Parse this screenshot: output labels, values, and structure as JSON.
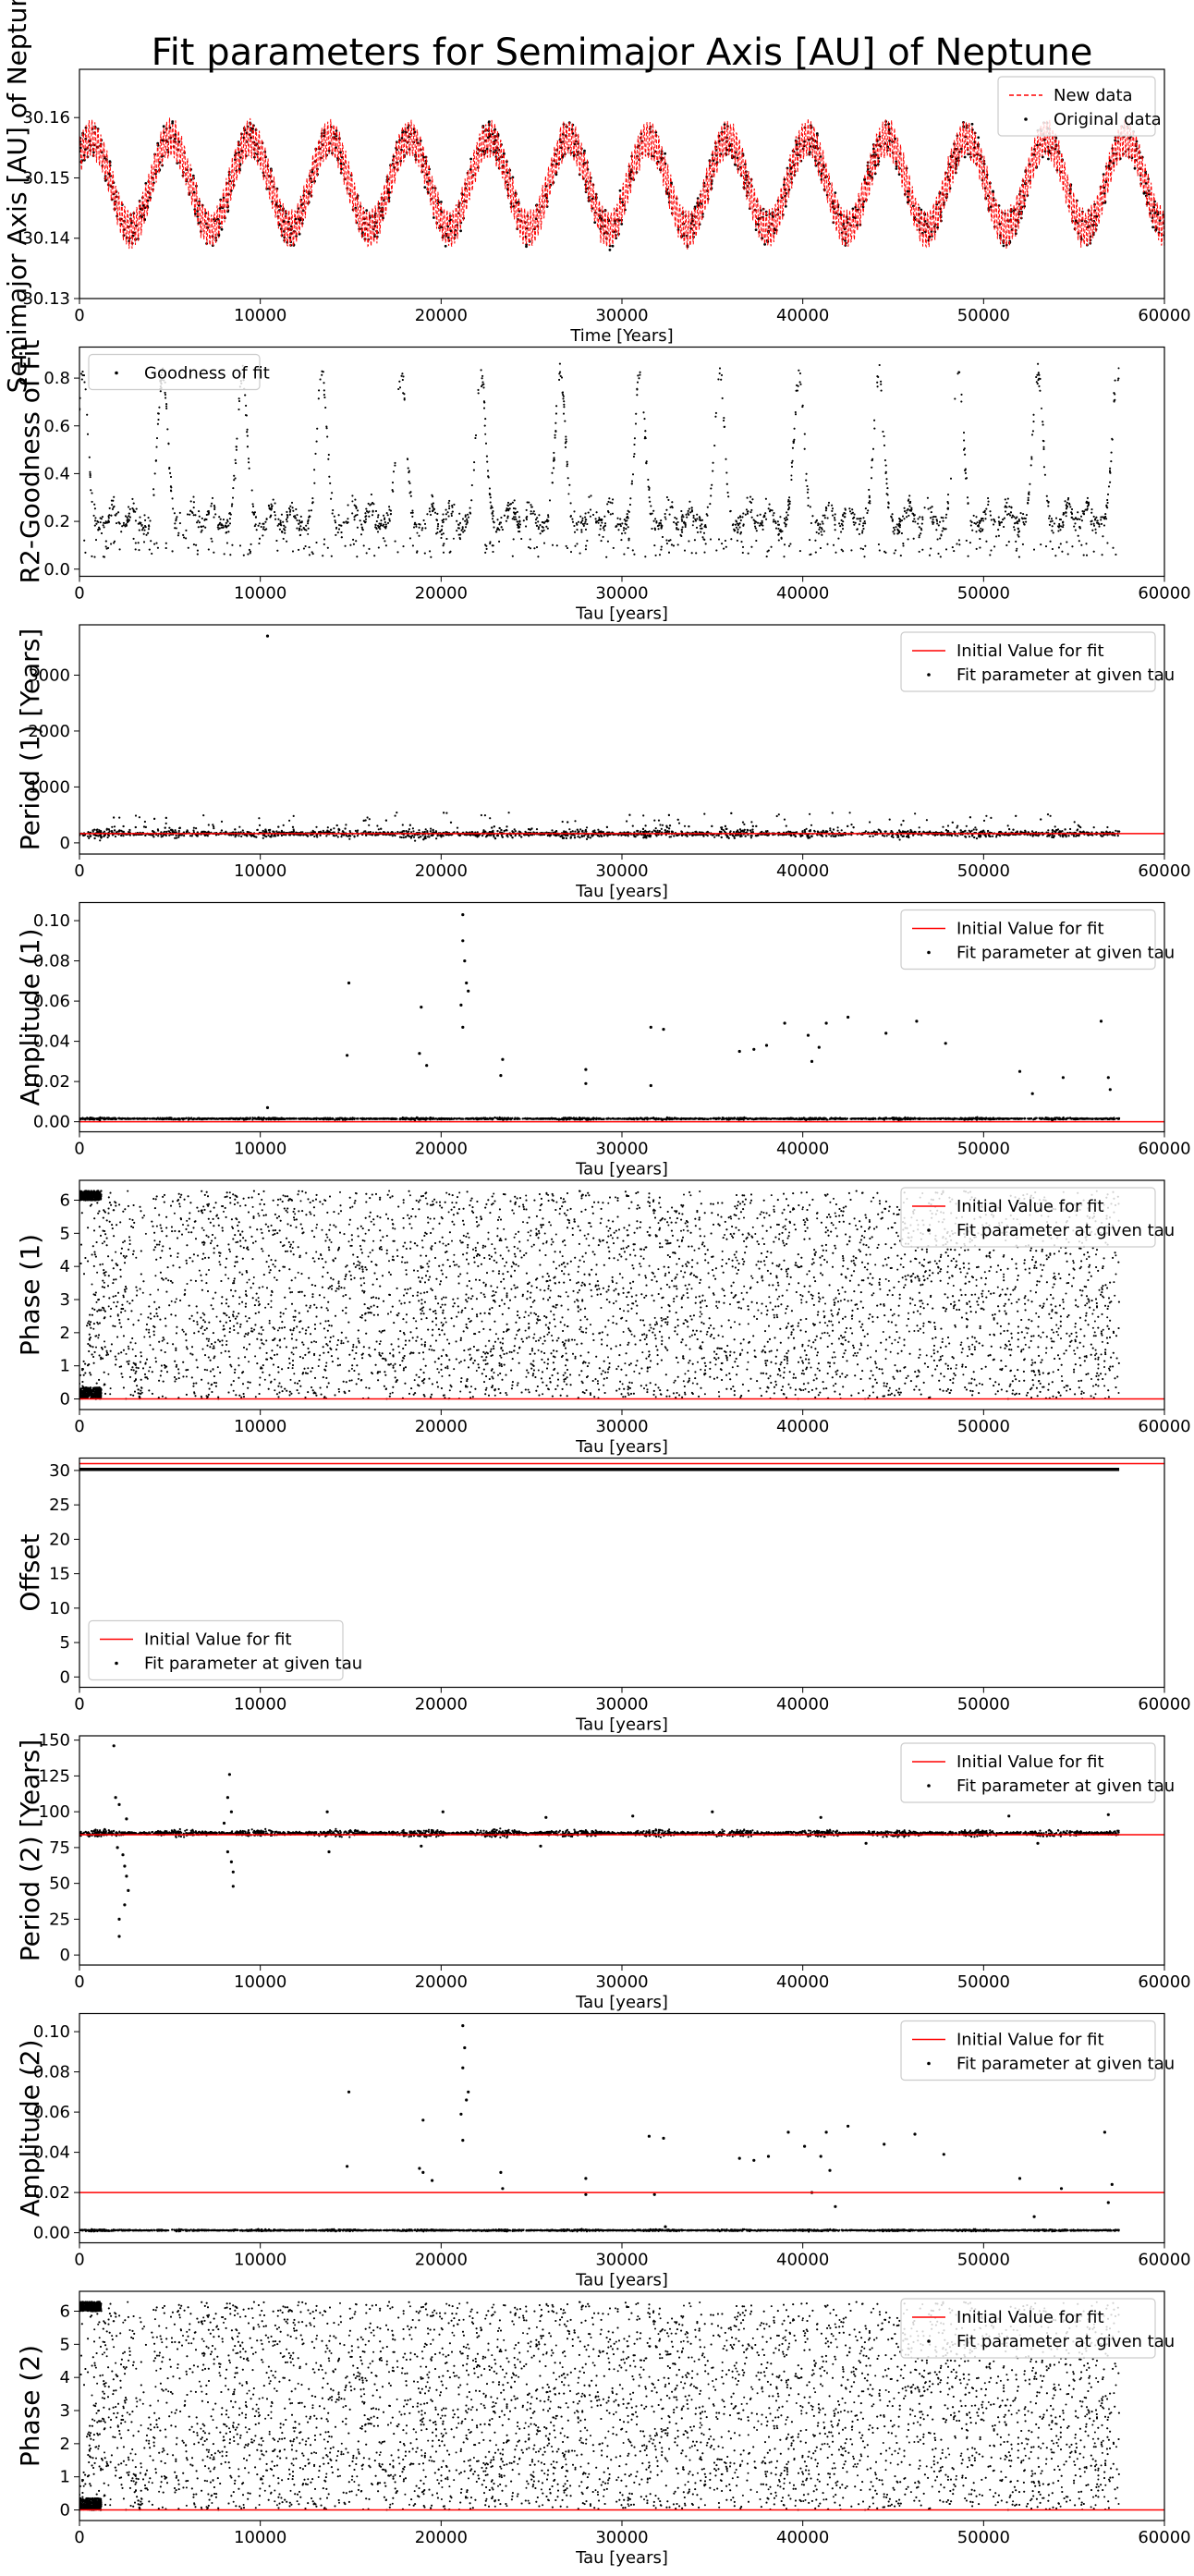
{
  "figure": {
    "title": "Fit parameters for Semimajor Axis [AU] of Neptune"
  },
  "chart_data": [
    {
      "id": "semimajor",
      "type": "line",
      "xlabel": "Time [Years]",
      "ylabel": "Semimajor Axis [AU] of Neptune",
      "xlim": [
        0,
        60000
      ],
      "ylim": [
        30.13,
        30.168
      ],
      "xticks": [
        0,
        10000,
        20000,
        30000,
        40000,
        50000,
        60000
      ],
      "yticks": [
        30.13,
        30.14,
        30.15,
        30.16
      ],
      "ytick_labels": [
        "30.13",
        "30.14",
        "30.15",
        "30.16"
      ],
      "legend_position": "top-right",
      "series": [
        {
          "name": "New data",
          "style": "dashed-line",
          "color": "#ff0000",
          "mean": 30.149,
          "slow_amplitude": 0.0075,
          "slow_period": 4400,
          "fast_amplitude": 0.003,
          "x_range": [
            0,
            60000
          ]
        },
        {
          "name": "Original data",
          "style": "points",
          "color": "#000000",
          "mean": 30.149,
          "slow_amplitude": 0.0075,
          "slow_period": 4400,
          "fast_amplitude": 0.0025,
          "x_range": [
            0,
            60000
          ]
        }
      ]
    },
    {
      "id": "r2",
      "type": "scatter",
      "xlabel": "Tau [years]",
      "ylabel": "R2-Goodness of Fit",
      "xlim": [
        0,
        60000
      ],
      "ylim": [
        -0.03,
        0.93
      ],
      "xticks": [
        0,
        10000,
        20000,
        30000,
        40000,
        50000,
        60000
      ],
      "yticks": [
        0.0,
        0.2,
        0.4,
        0.6,
        0.8
      ],
      "ytick_labels": [
        "0.0",
        "0.2",
        "0.4",
        "0.6",
        "0.8"
      ],
      "legend_position": "top-left",
      "series": [
        {
          "name": "Goodness of fit",
          "style": "points",
          "color": "#000000",
          "period": 4400,
          "base": 0.18,
          "peak": 0.82,
          "x_range": [
            0,
            57500
          ]
        }
      ]
    },
    {
      "id": "period1",
      "type": "scatter",
      "xlabel": "Tau [years]",
      "ylabel": "Period (1) [Years]",
      "xlim": [
        0,
        60000
      ],
      "ylim": [
        -200,
        3900
      ],
      "xticks": [
        0,
        10000,
        20000,
        30000,
        40000,
        50000,
        60000
      ],
      "yticks": [
        0,
        1000,
        2000,
        3000
      ],
      "ytick_labels": [
        "0",
        "1000",
        "2000",
        "3000"
      ],
      "legend_position": "top-right",
      "initial_value": 164.8,
      "series": [
        {
          "name": "Initial Value for fit",
          "style": "line",
          "color": "#ff0000"
        },
        {
          "name": "Fit parameter at given tau",
          "style": "points",
          "color": "#000000",
          "center": 164.8,
          "spread": 90,
          "outlier_max": 550,
          "x_range": [
            0,
            57500
          ]
        }
      ],
      "notable_points": [
        [
          10400,
          3700
        ]
      ]
    },
    {
      "id": "amplitude1",
      "type": "scatter",
      "xlabel": "Tau [years]",
      "ylabel": "Amplitude (1)",
      "xlim": [
        0,
        60000
      ],
      "ylim": [
        -0.005,
        0.109
      ],
      "xticks": [
        0,
        10000,
        20000,
        30000,
        40000,
        50000,
        60000
      ],
      "yticks": [
        0.0,
        0.02,
        0.04,
        0.06,
        0.08,
        0.1
      ],
      "ytick_labels": [
        "0.00",
        "0.02",
        "0.04",
        "0.06",
        "0.08",
        "0.10"
      ],
      "legend_position": "top-right",
      "initial_value": 0.0,
      "series": [
        {
          "name": "Initial Value for fit",
          "style": "line",
          "color": "#ff0000"
        },
        {
          "name": "Fit parameter at given tau",
          "style": "points",
          "color": "#000000",
          "center": 0.0015,
          "spread": 0.0006,
          "x_range": [
            0,
            57500
          ]
        }
      ],
      "notable_points": [
        [
          10400,
          0.007
        ],
        [
          14900,
          0.069
        ],
        [
          14800,
          0.033
        ],
        [
          18900,
          0.057
        ],
        [
          18800,
          0.034
        ],
        [
          19200,
          0.028
        ],
        [
          21200,
          0.103
        ],
        [
          21200,
          0.09
        ],
        [
          21300,
          0.08
        ],
        [
          21400,
          0.069
        ],
        [
          21500,
          0.065
        ],
        [
          21100,
          0.058
        ],
        [
          21200,
          0.047
        ],
        [
          23400,
          0.031
        ],
        [
          23300,
          0.023
        ],
        [
          28000,
          0.026
        ],
        [
          28000,
          0.019
        ],
        [
          31600,
          0.047
        ],
        [
          32300,
          0.046
        ],
        [
          31600,
          0.018
        ],
        [
          36500,
          0.035
        ],
        [
          37300,
          0.036
        ],
        [
          38000,
          0.038
        ],
        [
          39000,
          0.049
        ],
        [
          40300,
          0.043
        ],
        [
          40500,
          0.03
        ],
        [
          40900,
          0.037
        ],
        [
          41300,
          0.049
        ],
        [
          42500,
          0.052
        ],
        [
          44600,
          0.044
        ],
        [
          46300,
          0.05
        ],
        [
          47900,
          0.039
        ],
        [
          52000,
          0.025
        ],
        [
          52700,
          0.014
        ],
        [
          54400,
          0.022
        ],
        [
          56500,
          0.05
        ],
        [
          56900,
          0.022
        ],
        [
          57000,
          0.016
        ]
      ]
    },
    {
      "id": "phase1",
      "type": "scatter",
      "xlabel": "Tau [years]",
      "ylabel": "Phase (1)",
      "xlim": [
        0,
        60000
      ],
      "ylim": [
        -0.32,
        6.6
      ],
      "xticks": [
        0,
        10000,
        20000,
        30000,
        40000,
        50000,
        60000
      ],
      "yticks": [
        0,
        1,
        2,
        3,
        4,
        5,
        6
      ],
      "ytick_labels": [
        "0",
        "1",
        "2",
        "3",
        "4",
        "5",
        "6"
      ],
      "legend_position": "top-right",
      "initial_value": 0.0,
      "series": [
        {
          "name": "Initial Value for fit",
          "style": "line",
          "color": "#ff0000"
        },
        {
          "name": "Fit parameter at given tau",
          "style": "points",
          "color": "#000000",
          "y_range": [
            0,
            6.28
          ],
          "x_range": [
            0,
            57500
          ]
        }
      ]
    },
    {
      "id": "offset",
      "type": "scatter",
      "xlabel": "Tau [years]",
      "ylabel": "Offset",
      "xlim": [
        0,
        60000
      ],
      "ylim": [
        -1.5,
        31.8
      ],
      "xticks": [
        0,
        10000,
        20000,
        30000,
        40000,
        50000,
        60000
      ],
      "yticks": [
        0,
        5,
        10,
        15,
        20,
        25,
        30
      ],
      "ytick_labels": [
        "0",
        "5",
        "10",
        "15",
        "20",
        "25",
        "30"
      ],
      "legend_position": "bottom-left",
      "initial_value": 31.0,
      "series": [
        {
          "name": "Initial Value for fit",
          "style": "line",
          "color": "#ff0000"
        },
        {
          "name": "Fit parameter at given tau",
          "style": "points",
          "color": "#000000",
          "center": 30.15,
          "spread": 0.0,
          "x_range": [
            0,
            57500
          ]
        }
      ]
    },
    {
      "id": "period2",
      "type": "scatter",
      "xlabel": "Tau [years]",
      "ylabel": "Period (2) [Years]",
      "xlim": [
        0,
        60000
      ],
      "ylim": [
        -7,
        153
      ],
      "xticks": [
        0,
        10000,
        20000,
        30000,
        40000,
        50000,
        60000
      ],
      "yticks": [
        0,
        25,
        50,
        75,
        100,
        125,
        150
      ],
      "ytick_labels": [
        "0",
        "25",
        "50",
        "75",
        "100",
        "125",
        "150"
      ],
      "legend_position": "top-right",
      "initial_value": 84.0,
      "series": [
        {
          "name": "Initial Value for fit",
          "style": "line",
          "color": "#ff0000"
        },
        {
          "name": "Fit parameter at given tau",
          "style": "points",
          "color": "#000000",
          "center": 85.0,
          "spread": 2.5,
          "x_range": [
            0,
            57500
          ]
        }
      ],
      "notable_points": [
        [
          1900,
          146
        ],
        [
          2000,
          110
        ],
        [
          2200,
          105
        ],
        [
          2100,
          75
        ],
        [
          2400,
          70
        ],
        [
          2500,
          62
        ],
        [
          2600,
          55
        ],
        [
          2700,
          45
        ],
        [
          2500,
          35
        ],
        [
          2200,
          25
        ],
        [
          2200,
          13
        ],
        [
          2600,
          95
        ],
        [
          8300,
          126
        ],
        [
          8200,
          110
        ],
        [
          8400,
          100
        ],
        [
          8000,
          92
        ],
        [
          8200,
          72
        ],
        [
          8400,
          65
        ],
        [
          8500,
          58
        ],
        [
          8500,
          48
        ],
        [
          13700,
          100
        ],
        [
          13800,
          72
        ],
        [
          18900,
          76
        ],
        [
          20100,
          100
        ],
        [
          25800,
          96
        ],
        [
          25500,
          76
        ],
        [
          30600,
          97
        ],
        [
          35000,
          100
        ],
        [
          41000,
          96
        ],
        [
          43500,
          78
        ],
        [
          51400,
          97
        ],
        [
          53000,
          78
        ],
        [
          56900,
          98
        ]
      ]
    },
    {
      "id": "amplitude2",
      "type": "scatter",
      "xlabel": "Tau [years]",
      "ylabel": "Amplitude (2)",
      "xlim": [
        0,
        60000
      ],
      "ylim": [
        -0.005,
        0.109
      ],
      "xticks": [
        0,
        10000,
        20000,
        30000,
        40000,
        50000,
        60000
      ],
      "yticks": [
        0.0,
        0.02,
        0.04,
        0.06,
        0.08,
        0.1
      ],
      "ytick_labels": [
        "0.00",
        "0.02",
        "0.04",
        "0.06",
        "0.08",
        "0.10"
      ],
      "legend_position": "top-right",
      "initial_value": 0.02,
      "series": [
        {
          "name": "Initial Value for fit",
          "style": "line",
          "color": "#ff0000"
        },
        {
          "name": "Fit parameter at given tau",
          "style": "points",
          "color": "#000000",
          "center": 0.0012,
          "spread": 0.0005,
          "x_range": [
            0,
            57500
          ]
        }
      ],
      "notable_points": [
        [
          14900,
          0.07
        ],
        [
          14800,
          0.033
        ],
        [
          19000,
          0.056
        ],
        [
          19000,
          0.03
        ],
        [
          18800,
          0.032
        ],
        [
          19500,
          0.026
        ],
        [
          21200,
          0.103
        ],
        [
          21300,
          0.092
        ],
        [
          21200,
          0.082
        ],
        [
          21500,
          0.07
        ],
        [
          21400,
          0.066
        ],
        [
          21100,
          0.059
        ],
        [
          21200,
          0.046
        ],
        [
          23300,
          0.03
        ],
        [
          23400,
          0.022
        ],
        [
          28000,
          0.027
        ],
        [
          28000,
          0.019
        ],
        [
          31500,
          0.048
        ],
        [
          32300,
          0.047
        ],
        [
          31800,
          0.019
        ],
        [
          32400,
          0.003
        ],
        [
          36500,
          0.037
        ],
        [
          37300,
          0.036
        ],
        [
          38100,
          0.038
        ],
        [
          39200,
          0.05
        ],
        [
          40100,
          0.043
        ],
        [
          40500,
          0.02
        ],
        [
          41000,
          0.038
        ],
        [
          41300,
          0.05
        ],
        [
          41500,
          0.031
        ],
        [
          41800,
          0.013
        ],
        [
          42500,
          0.053
        ],
        [
          44500,
          0.044
        ],
        [
          46200,
          0.049
        ],
        [
          47800,
          0.039
        ],
        [
          52000,
          0.027
        ],
        [
          52800,
          0.008
        ],
        [
          54300,
          0.022
        ],
        [
          56700,
          0.05
        ],
        [
          57100,
          0.024
        ],
        [
          56900,
          0.015
        ]
      ]
    },
    {
      "id": "phase2",
      "type": "scatter",
      "xlabel": "Tau [years]",
      "ylabel": "Phase (2)",
      "xlim": [
        0,
        60000
      ],
      "ylim": [
        -0.32,
        6.6
      ],
      "xticks": [
        0,
        10000,
        20000,
        30000,
        40000,
        50000,
        60000
      ],
      "yticks": [
        0,
        1,
        2,
        3,
        4,
        5,
        6
      ],
      "ytick_labels": [
        "0",
        "1",
        "2",
        "3",
        "4",
        "5",
        "6"
      ],
      "legend_position": "top-right",
      "initial_value": 0.0,
      "series": [
        {
          "name": "Initial Value for fit",
          "style": "line",
          "color": "#ff0000"
        },
        {
          "name": "Fit parameter at given tau",
          "style": "points",
          "color": "#000000",
          "y_range": [
            0,
            6.28
          ],
          "x_range": [
            0,
            57500
          ]
        }
      ]
    }
  ]
}
